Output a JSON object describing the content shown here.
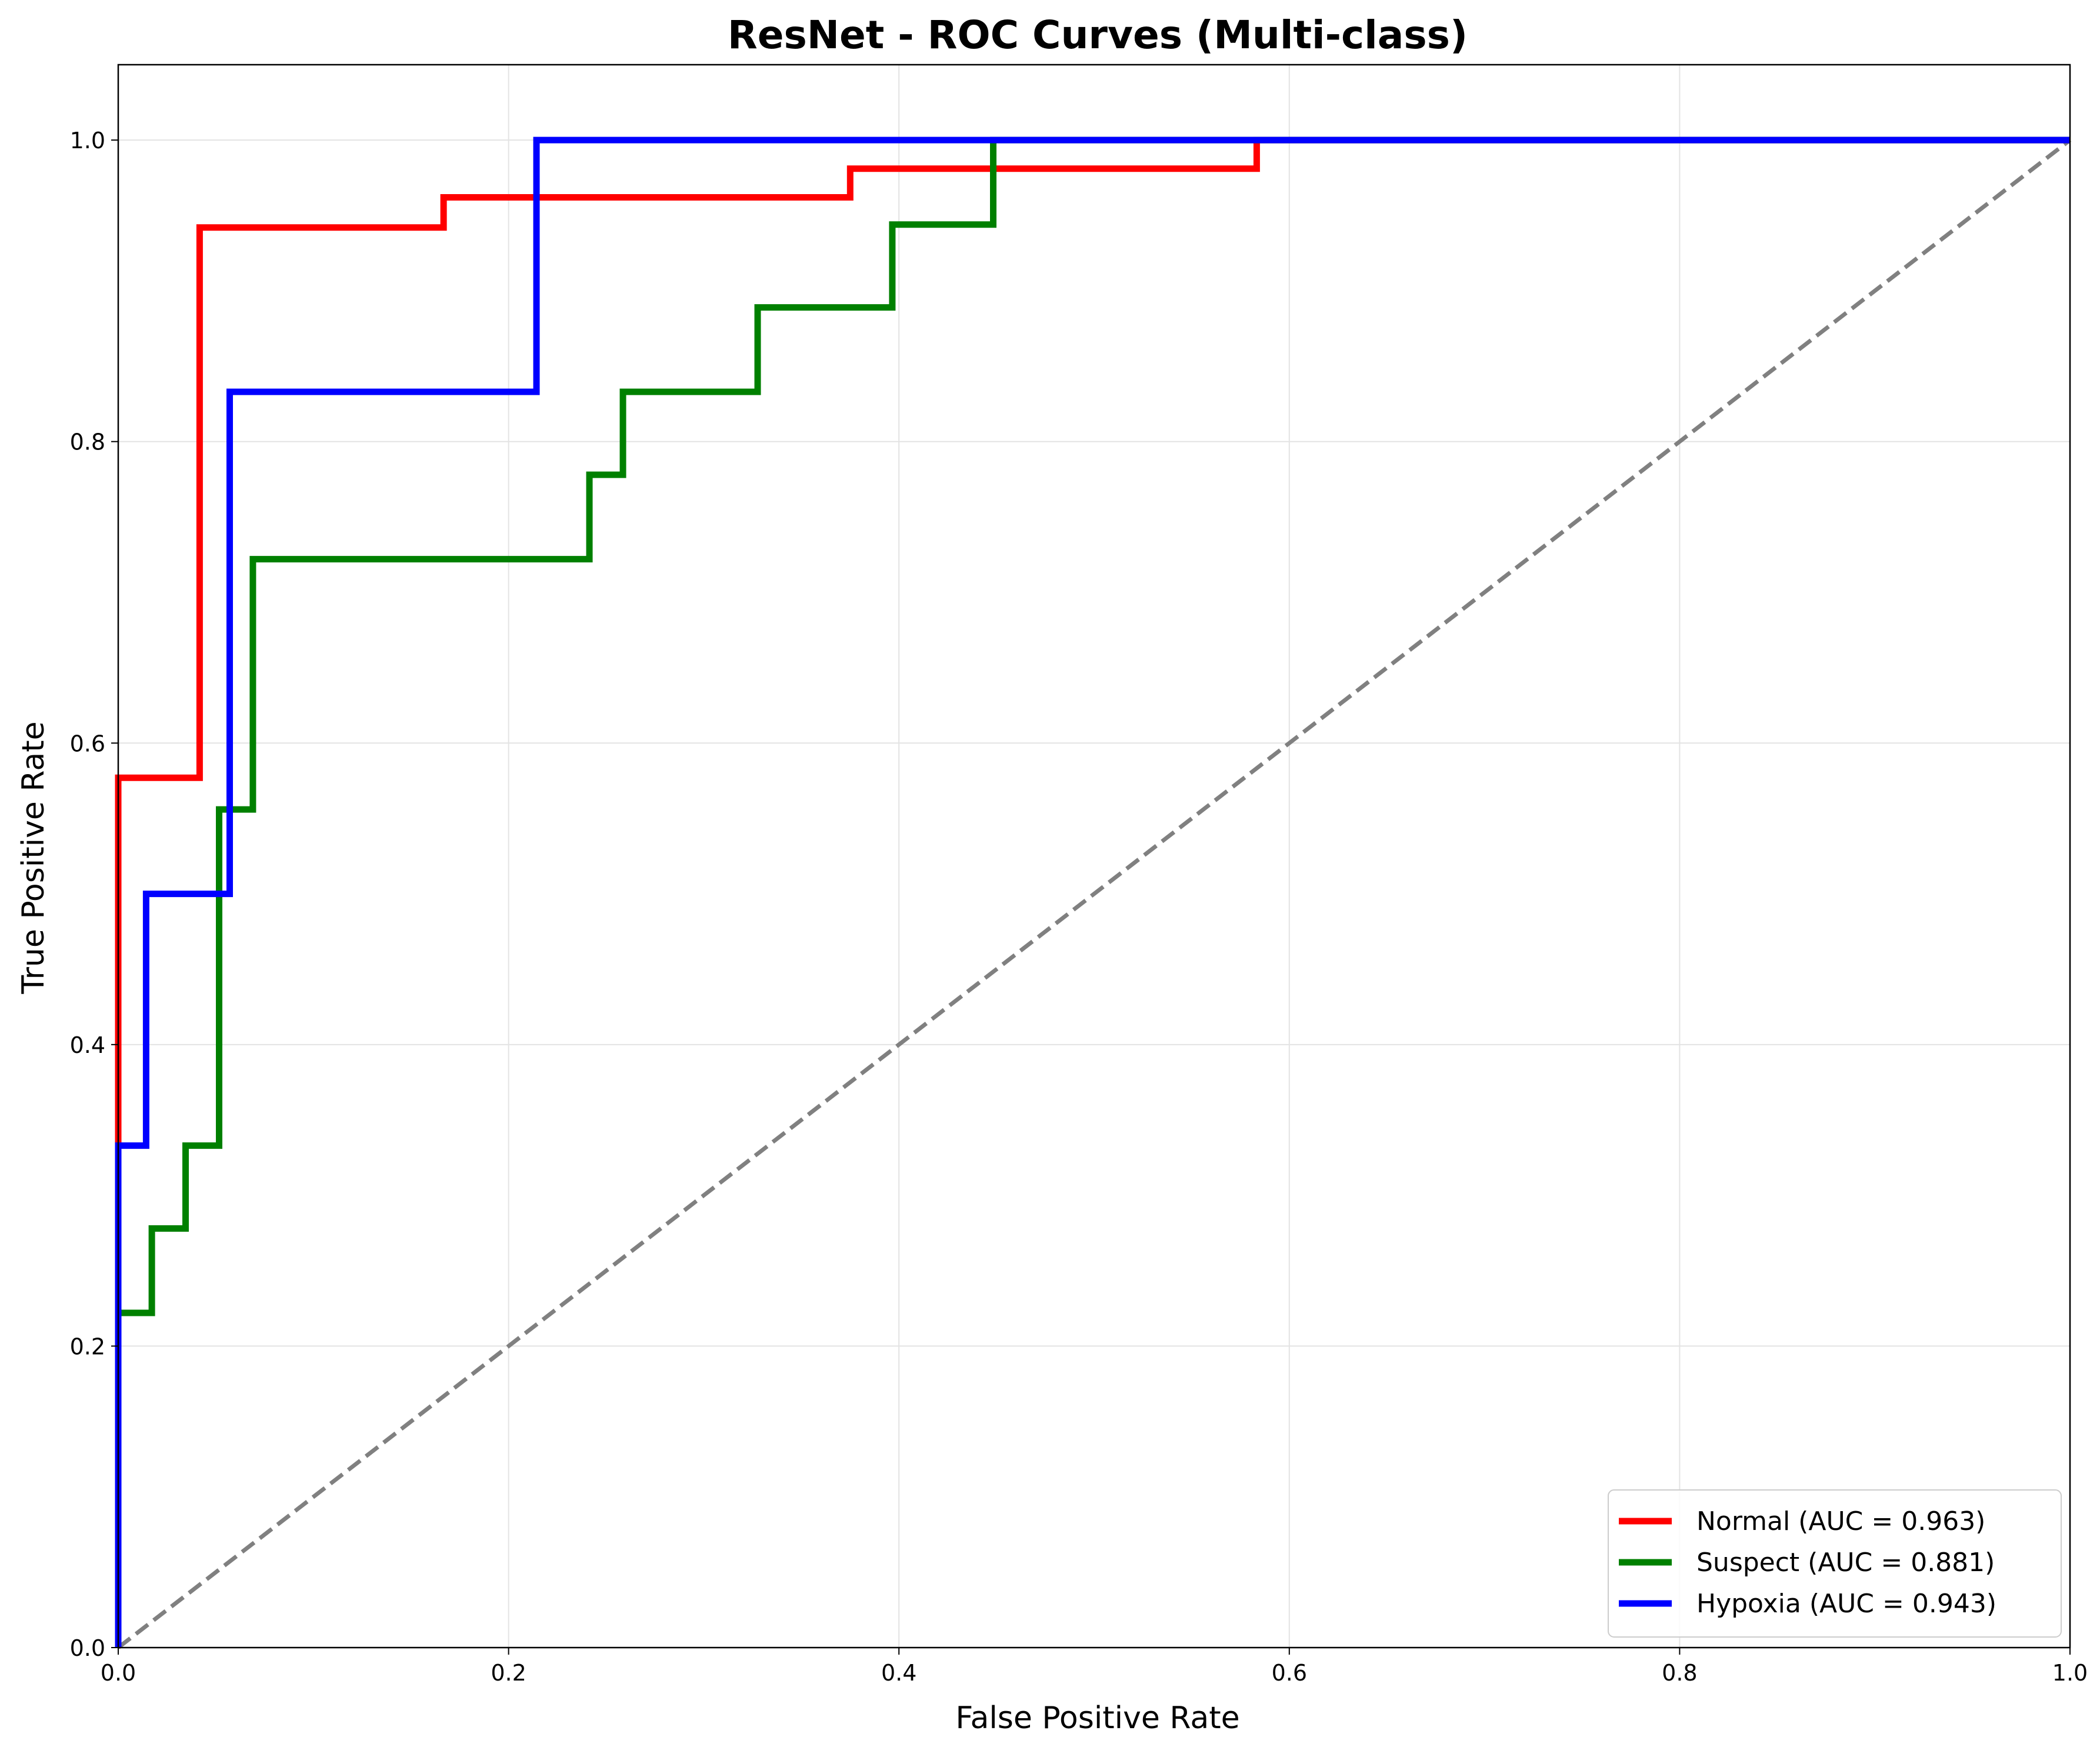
{
  "chart_data": {
    "type": "line",
    "title": "ResNet - ROC Curves (Multi-class)",
    "xlabel": "False Positive Rate",
    "ylabel": "True Positive Rate",
    "xlim": [
      0.0,
      1.0
    ],
    "ylim": [
      0.0,
      1.05
    ],
    "x_ticks": [
      "0.0",
      "0.2",
      "0.4",
      "0.6",
      "0.8",
      "1.0"
    ],
    "y_ticks": [
      "0.0",
      "0.2",
      "0.4",
      "0.6",
      "0.8",
      "1.0"
    ],
    "grid": true,
    "legend_position": "lower-right",
    "series": [
      {
        "name": "Normal (AUC = 0.963)",
        "color": "#ff0000",
        "x": [
          0.0,
          0.0,
          0.0,
          0.0,
          0.0417,
          0.0417,
          0.1667,
          0.1667,
          0.375,
          0.375,
          0.5833,
          0.5833,
          1.0
        ],
        "y": [
          0.0,
          0.333,
          0.333,
          0.577,
          0.577,
          0.942,
          0.942,
          0.962,
          0.962,
          0.981,
          0.981,
          1.0,
          1.0
        ]
      },
      {
        "name": "Suspect (AUC = 0.881)",
        "color": "#008000",
        "x": [
          0.0,
          0.0,
          0.0172,
          0.0172,
          0.0345,
          0.0345,
          0.0517,
          0.0517,
          0.069,
          0.069,
          0.2414,
          0.2414,
          0.2586,
          0.2586,
          0.3276,
          0.3276,
          0.3966,
          0.3966,
          0.4483,
          0.4483,
          1.0
        ],
        "y": [
          0.0,
          0.222,
          0.222,
          0.278,
          0.278,
          0.333,
          0.333,
          0.556,
          0.556,
          0.722,
          0.722,
          0.778,
          0.778,
          0.833,
          0.833,
          0.889,
          0.889,
          0.944,
          0.944,
          1.0,
          1.0
        ]
      },
      {
        "name": "Hypoxia (AUC = 0.943)",
        "color": "#0000ff",
        "x": [
          0.0,
          0.0,
          0.0143,
          0.0143,
          0.0571,
          0.0571,
          0.2143,
          0.2143,
          1.0
        ],
        "y": [
          0.0,
          0.333,
          0.333,
          0.5,
          0.5,
          0.833,
          0.833,
          1.0,
          1.0
        ]
      }
    ],
    "reference_line": {
      "x": [
        0.0,
        1.0
      ],
      "y": [
        0.0,
        1.0
      ],
      "color": "#808080",
      "style": "dashed"
    }
  }
}
